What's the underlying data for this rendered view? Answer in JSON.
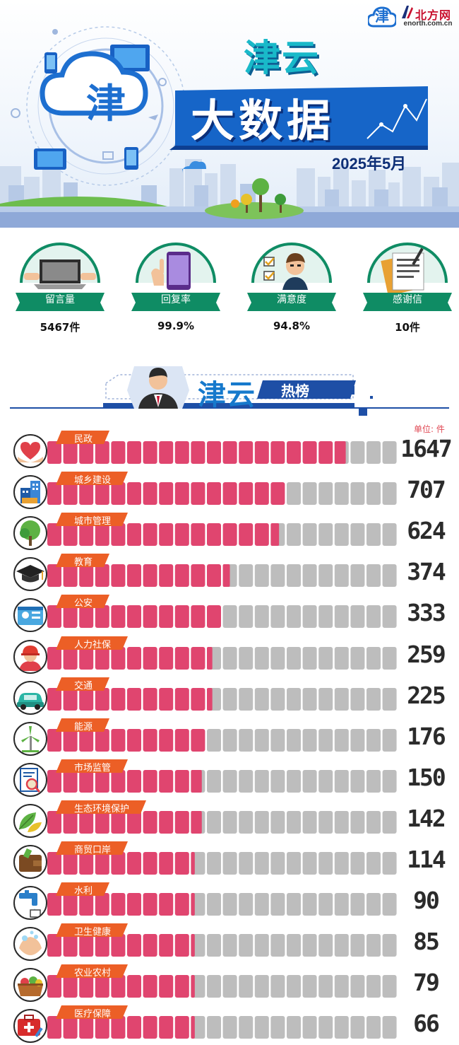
{
  "header": {
    "brand_logo_text": "津",
    "partner_name": "北方网",
    "partner_url": "enorth.com.cn",
    "title_main": "津云",
    "title_sub": "大数据",
    "date": "2025年5月",
    "colors": {
      "teal": "#19b9c9",
      "navy": "#0e2f76",
      "blue": "#1665c8"
    }
  },
  "stats": [
    {
      "label": "留言量",
      "value": "5467件",
      "icon": "laptop-icon"
    },
    {
      "label": "回复率",
      "value": "99.9%",
      "icon": "smartphone-icon"
    },
    {
      "label": "满意度",
      "value": "94.8%",
      "icon": "person-checklist-icon"
    },
    {
      "label": "感谢信",
      "value": "10件",
      "icon": "letter-icon"
    }
  ],
  "section": {
    "title_left": "津云",
    "title_right": "热榜",
    "unit_label": "单位: 件"
  },
  "chart_data": {
    "type": "bar",
    "categories": [
      "民政",
      "城乡建设",
      "城市管理",
      "教育",
      "公安",
      "人力社保",
      "交通",
      "能源",
      "市场监管",
      "生态环境保护",
      "商贸口岸",
      "水利",
      "卫生健康",
      "农业农村",
      "医疗保障"
    ],
    "values": [
      1647,
      707,
      624,
      374,
      333,
      259,
      225,
      176,
      150,
      142,
      114,
      90,
      85,
      79,
      66
    ],
    "fill_fraction": [
      0.85,
      0.68,
      0.66,
      0.52,
      0.5,
      0.47,
      0.47,
      0.45,
      0.44,
      0.44,
      0.42,
      0.42,
      0.42,
      0.42,
      0.42
    ],
    "icons": [
      "heart-hands-icon",
      "buildings-icon",
      "tree-icon",
      "graduation-cap-icon",
      "police-id-icon",
      "worker-icon",
      "car-icon",
      "wind-turbine-icon",
      "magnifier-report-icon",
      "leaves-icon",
      "wallet-icon",
      "faucet-icon",
      "washing-hands-icon",
      "vegetable-basket-icon",
      "first-aid-kit-icon"
    ],
    "colors": {
      "filled": "#e0456f",
      "empty": "#bdbdbd",
      "tag": "#ec5f26"
    }
  }
}
